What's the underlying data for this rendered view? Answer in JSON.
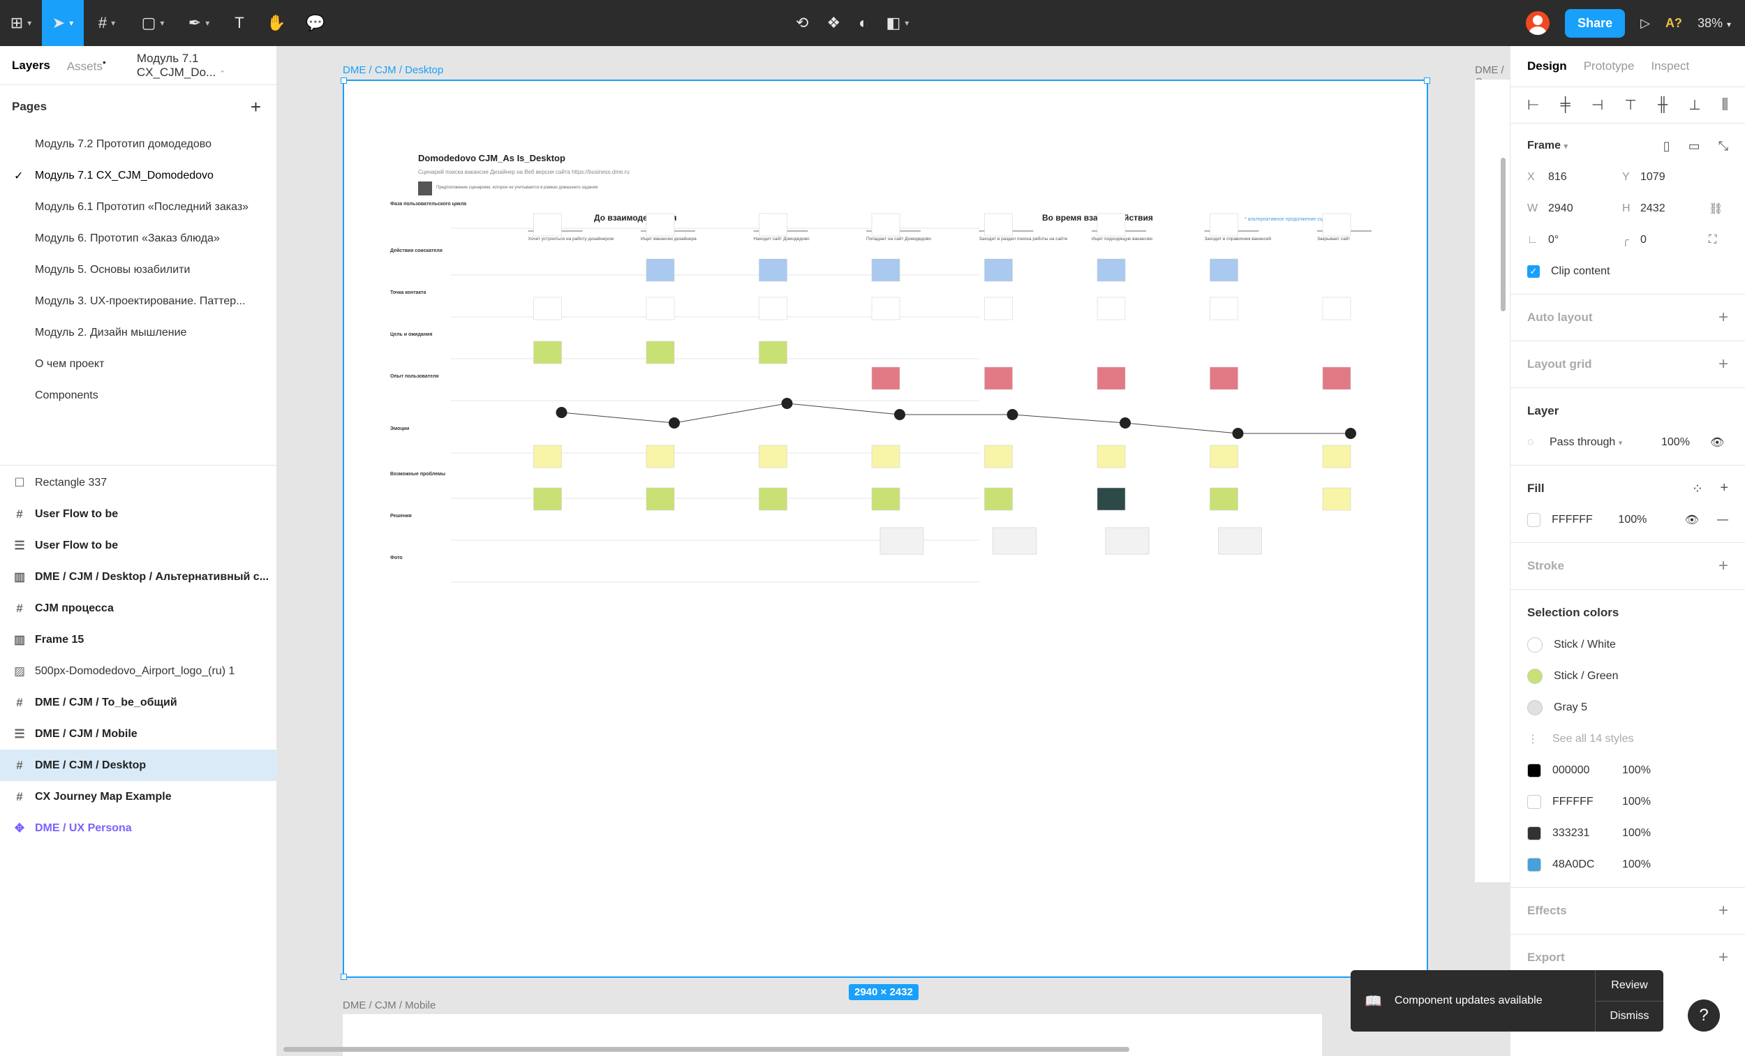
{
  "toolbar": {
    "share": "Share",
    "zoom": "38%",
    "ai": "A?"
  },
  "left": {
    "tab_layers": "Layers",
    "tab_assets": "Assets",
    "page_name": "Модуль 7.1 CX_CJM_Do...",
    "pages_title": "Pages",
    "pages": [
      "Модуль 7.2 Прототип домодедово",
      "Модуль 7.1 CX_CJM_Domodedovo",
      "Модуль 6.1 Прототип «Последний заказ»",
      "Модуль 6. Прототип «Заказ блюда»",
      "Модуль 5. Основы юзабилити",
      "Модуль 3. UX-проектирование. Паттер...",
      "Модуль 2. Дизайн мышление",
      "О чем проект",
      "Components"
    ],
    "layers": [
      {
        "name": "Rectangle 337",
        "icon": "☐",
        "style": ""
      },
      {
        "name": "User Flow to be",
        "icon": "#",
        "style": "bold"
      },
      {
        "name": "User Flow to be",
        "icon": "☰",
        "style": "bold"
      },
      {
        "name": "DME / CJM / Desktop / Альтернативный с...",
        "icon": "▥",
        "style": "bold"
      },
      {
        "name": "CJM процесса",
        "icon": "#",
        "style": "bold"
      },
      {
        "name": "Frame 15",
        "icon": "▥",
        "style": "bold"
      },
      {
        "name": "500px-Domodedovo_Airport_logo_(ru) 1",
        "icon": "▨",
        "style": ""
      },
      {
        "name": "DME / CJM / To_be_общий",
        "icon": "#",
        "style": "bold"
      },
      {
        "name": "DME / CJM / Mobile",
        "icon": "☰",
        "style": "bold"
      },
      {
        "name": "DME / CJM / Desktop",
        "icon": "#",
        "style": "bold sel"
      },
      {
        "name": "CX Journey Map Example",
        "icon": "#",
        "style": "bold"
      },
      {
        "name": "DME / UX Persona",
        "icon": "✥",
        "style": "comp"
      }
    ]
  },
  "canvas": {
    "frame_label": "DME / CJM / Desktop",
    "frame_label2": "DME / C",
    "mobile_label": "DME / CJM / Mobile",
    "dims": "2940 × 2432",
    "cjm_title": "Domodedovo CJM_As Is_Desktop",
    "cjm_sub": "Сценарий поиска вакансии Дизайнер на Веб версии сайта https://business.dme.ru",
    "legend": "Предположение сценарием, которое не учитывается в рамках домашнего задания",
    "phase1": "До взаимодействия",
    "phase2": "Во время взаимодействия",
    "alt_note": "* альтернативное продолжение сценария",
    "rows": [
      "Фаза пользовательского цикла",
      "Действия соискателя",
      "Точка контакта",
      "Цель и ожидания",
      "Опыт пользователя",
      "Эмоции",
      "Возможные проблемы",
      "Решения",
      "Фото"
    ],
    "stages": [
      "Хочет устроиться на работу дизайнером",
      "Ищет вакансии дизайнера",
      "Находит сайт Домодедово",
      "Попадает на сайт Домодедово",
      "Заходит в раздел поиска работы на сайте",
      "Ищет подходящую вакансию",
      "Заходит в справочник вакансий",
      "Закрывает сайт"
    ]
  },
  "right": {
    "tab_design": "Design",
    "tab_proto": "Prototype",
    "tab_inspect": "Inspect",
    "frame": "Frame",
    "x_label": "X",
    "x": "816",
    "y_label": "Y",
    "y": "1079",
    "w_label": "W",
    "w": "2940",
    "h_label": "H",
    "h": "2432",
    "rot": "0°",
    "radius": "0",
    "clip": "Clip content",
    "auto_layout": "Auto layout",
    "layout_grid": "Layout grid",
    "layer": "Layer",
    "blend": "Pass through",
    "opacity": "100%",
    "fill": "Fill",
    "fill_hex": "FFFFFF",
    "fill_op": "100%",
    "stroke": "Stroke",
    "selection_colors": "Selection colors",
    "styles": [
      {
        "name": "Stick / White",
        "color": "#ffffff"
      },
      {
        "name": "Stick / Green",
        "color": "#c9e075"
      },
      {
        "name": "Gray 5",
        "color": "#e0e0e0"
      }
    ],
    "see_all": "See all 14 styles",
    "colors": [
      {
        "hex": "000000",
        "op": "100%",
        "color": "#000000"
      },
      {
        "hex": "FFFFFF",
        "op": "100%",
        "color": "#ffffff"
      },
      {
        "hex": "333231",
        "op": "100%",
        "color": "#333231"
      },
      {
        "hex": "48A0DC",
        "op": "100%",
        "color": "#48a0dc"
      }
    ],
    "effects": "Effects",
    "export": "Export"
  },
  "toast": {
    "msg": "Component updates available",
    "review": "Review",
    "dismiss": "Dismiss"
  },
  "help": "?"
}
